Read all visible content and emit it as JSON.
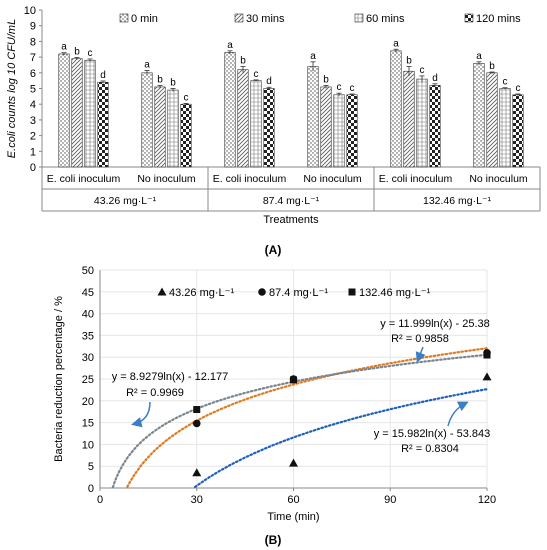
{
  "chart_data": [
    {
      "type": "bar",
      "panel_label": "(A)",
      "ylabel": "E.coli counts log 10 CFU/mL",
      "xlabel": "Treatments",
      "ylim": [
        0,
        10
      ],
      "yticks": [
        0,
        1,
        2,
        3,
        4,
        5,
        6,
        7,
        8,
        9,
        10
      ],
      "legend_position": "top",
      "groups": [
        {
          "concentration": "43.26 mg·L⁻¹",
          "subgroups": [
            {
              "label": "E. coli inoculum",
              "values": [
                7.2,
                6.9,
                6.8,
                5.4
              ],
              "errors": [
                0.08,
                0.08,
                0.08,
                0.08
              ],
              "letters": [
                "a",
                "b",
                "c",
                "d"
              ]
            },
            {
              "label": "No inoculum",
              "values": [
                6.0,
                5.1,
                4.9,
                4.0
              ],
              "errors": [
                0.15,
                0.1,
                0.1,
                0.05
              ],
              "letters": [
                "a",
                "b",
                "b",
                "c"
              ]
            }
          ]
        },
        {
          "concentration": "87.4 mg·L⁻¹",
          "subgroups": [
            {
              "label": "E. coli inoculum",
              "values": [
                7.3,
                6.2,
                5.5,
                5.0
              ],
              "errors": [
                0.1,
                0.2,
                0.05,
                0.08
              ],
              "letters": [
                "a",
                "b",
                "c",
                "d"
              ]
            },
            {
              "label": "No inoculum",
              "values": [
                6.4,
                5.1,
                4.6,
                4.6
              ],
              "errors": [
                0.3,
                0.1,
                0.1,
                0.05
              ],
              "letters": [
                "a",
                "b",
                "c",
                "c"
              ]
            }
          ]
        },
        {
          "concentration": "132.46 mg·L⁻¹",
          "subgroups": [
            {
              "label": "E. coli inoculum",
              "values": [
                7.4,
                6.1,
                5.6,
                5.2
              ],
              "errors": [
                0.1,
                0.3,
                0.2,
                0.1
              ],
              "letters": [
                "a",
                "b",
                "c",
                "d"
              ]
            },
            {
              "label": "No inoculum",
              "values": [
                6.6,
                6.0,
                5.0,
                4.6
              ],
              "errors": [
                0.1,
                0.05,
                0.05,
                0.05
              ],
              "letters": [
                "a",
                "b",
                "c",
                "c"
              ]
            }
          ]
        }
      ],
      "series": [
        {
          "name": "0 min",
          "pattern": "dots"
        },
        {
          "name": "30 mins",
          "pattern": "diag"
        },
        {
          "name": "60 mins",
          "pattern": "cross"
        },
        {
          "name": "120 mins",
          "pattern": "check"
        }
      ]
    },
    {
      "type": "scatter",
      "panel_label": "(B)",
      "xlabel": "Time (min)",
      "ylabel": "Bacteria reduction percentage / %",
      "xlim": [
        0,
        120
      ],
      "ylim": [
        0,
        50
      ],
      "xticks": [
        0,
        30,
        60,
        90,
        120
      ],
      "yticks": [
        0,
        5,
        10,
        15,
        20,
        25,
        30,
        35,
        40,
        45,
        50
      ],
      "legend_position": "top",
      "series": [
        {
          "name": "43.26 mg·L⁻¹",
          "marker": "triangle",
          "x": [
            30,
            60,
            120
          ],
          "y": [
            3.5,
            5.7,
            25.5
          ],
          "trend": {
            "a": 15.982,
            "b": -53.843,
            "color": "#1f5fbf"
          }
        },
        {
          "name": "87.4 mg·L⁻¹",
          "marker": "circle",
          "x": [
            30,
            60,
            120
          ],
          "y": [
            14.8,
            25.0,
            31.0
          ],
          "trend": {
            "a": 11.999,
            "b": -25.38,
            "color": "#e07a1f"
          }
        },
        {
          "name": "132.46 mg·L⁻¹",
          "marker": "square",
          "x": [
            30,
            60,
            120
          ],
          "y": [
            18.0,
            24.8,
            30.5
          ],
          "trend": {
            "a": 8.9279,
            "b": -12.177,
            "color": "#7a8590"
          }
        }
      ],
      "annotations": [
        {
          "equation": "y = 11.999ln(x) - 25.38",
          "r2": "R² = 0.9858"
        },
        {
          "equation": "y = 8.9279ln(x) - 12.177",
          "r2": "R² = 0.9969"
        },
        {
          "equation": "y = 15.982ln(x) - 53.843",
          "r2": "R² = 0.8304"
        }
      ]
    }
  ]
}
